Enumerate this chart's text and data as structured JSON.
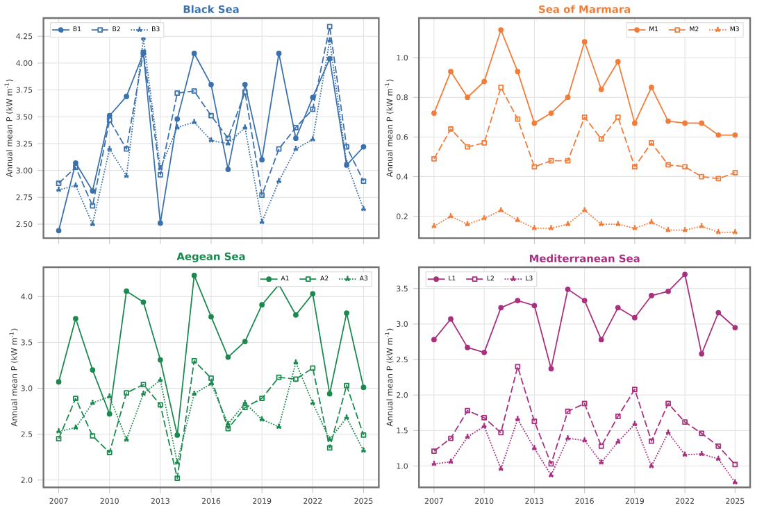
{
  "chart_data": [
    {
      "type": "line",
      "title": "Black Sea",
      "ylabel": "Annual mean P (kW m$^{-1}$)",
      "x": [
        2007,
        2008,
        2009,
        2010,
        2011,
        2012,
        2013,
        2014,
        2015,
        2016,
        2017,
        2018,
        2019,
        2020,
        2021,
        2022,
        2023,
        2024,
        2025
      ],
      "series": [
        {
          "name": "B1",
          "color": "#3b72ad",
          "marker": "circle",
          "line_style": "solid",
          "values": [
            2.44,
            3.07,
            2.81,
            3.51,
            3.69,
            4.09,
            2.51,
            3.48,
            4.09,
            3.8,
            3.01,
            3.8,
            3.1,
            4.09,
            3.3,
            3.68,
            4.04,
            3.05,
            3.22
          ]
        },
        {
          "name": "B2",
          "color": "#3b72ad",
          "marker": "square",
          "line_style": "dashed",
          "values": [
            2.88,
            3.03,
            2.67,
            3.47,
            3.2,
            4.1,
            2.96,
            3.72,
            3.74,
            3.51,
            3.3,
            3.73,
            2.77,
            3.2,
            3.4,
            3.57,
            4.34,
            3.22,
            2.9
          ]
        },
        {
          "name": "B3",
          "color": "#3b72ad",
          "marker": "triangle",
          "line_style": "dotted",
          "values": [
            2.82,
            2.86,
            2.5,
            3.2,
            2.95,
            4.23,
            3.02,
            3.4,
            3.45,
            3.28,
            3.25,
            3.4,
            2.52,
            2.9,
            3.2,
            3.29,
            4.21,
            3.07,
            2.64
          ]
        }
      ],
      "xlim": [
        2006.1,
        2025.9
      ],
      "ylim": [
        2.37,
        4.42
      ],
      "xticks": [
        2007,
        2010,
        2013,
        2016,
        2019,
        2022,
        2025
      ],
      "yticks": [
        {
          "value": 2.5,
          "label": "2.50"
        },
        {
          "value": 2.75,
          "label": "2.75"
        },
        {
          "value": 3.0,
          "label": "3.00"
        },
        {
          "value": 3.25,
          "label": "3.25"
        },
        {
          "value": 3.5,
          "label": "3.50"
        },
        {
          "value": 3.75,
          "label": "3.75"
        },
        {
          "value": 4.0,
          "label": "4.00"
        },
        {
          "value": 4.25,
          "label": "4.25"
        }
      ],
      "tick_labels": "y",
      "grid": true,
      "legend": "top left"
    },
    {
      "type": "line",
      "title": "Sea of Marmara",
      "ylabel": "Annual mean P (kW m$^{-1}$)",
      "x": [
        2007,
        2008,
        2009,
        2010,
        2011,
        2012,
        2013,
        2014,
        2015,
        2016,
        2017,
        2018,
        2019,
        2020,
        2021,
        2022,
        2023,
        2024,
        2025
      ],
      "series": [
        {
          "name": "M1",
          "color": "#f07d3a",
          "marker": "circle",
          "line_style": "solid",
          "values": [
            0.72,
            0.93,
            0.8,
            0.88,
            1.14,
            0.93,
            0.67,
            0.72,
            0.8,
            1.08,
            0.84,
            0.98,
            0.67,
            0.85,
            0.68,
            0.67,
            0.67,
            0.61,
            0.61
          ]
        },
        {
          "name": "M2",
          "color": "#f07d3a",
          "marker": "square",
          "line_style": "dashed",
          "values": [
            0.49,
            0.64,
            0.55,
            0.57,
            0.85,
            0.69,
            0.45,
            0.48,
            0.48,
            0.7,
            0.59,
            0.7,
            0.45,
            0.57,
            0.46,
            0.45,
            0.4,
            0.39,
            0.42
          ]
        },
        {
          "name": "M3",
          "color": "#f07d3a",
          "marker": "triangle",
          "line_style": "dotted",
          "values": [
            0.15,
            0.2,
            0.16,
            0.19,
            0.23,
            0.18,
            0.14,
            0.14,
            0.16,
            0.23,
            0.16,
            0.16,
            0.14,
            0.17,
            0.13,
            0.13,
            0.15,
            0.12,
            0.12
          ]
        }
      ],
      "xlim": [
        2006.1,
        2025.9
      ],
      "ylim": [
        0.09,
        1.2
      ],
      "xticks": [
        2007,
        2010,
        2013,
        2016,
        2019,
        2022,
        2025
      ],
      "yticks": [
        0.2,
        0.4,
        0.6,
        0.8,
        {
          "value": 1.0,
          "label": "1.0"
        }
      ],
      "tick_labels": "y",
      "grid": true,
      "legend": "top right"
    },
    {
      "type": "line",
      "title": "Aegean Sea",
      "ylabel": "Annual mean P (kW m$^{-1}$)",
      "x": [
        2007,
        2008,
        2009,
        2010,
        2011,
        2012,
        2013,
        2014,
        2015,
        2016,
        2017,
        2018,
        2019,
        2020,
        2021,
        2022,
        2023,
        2024,
        2025
      ],
      "series": [
        {
          "name": "A1",
          "color": "#1b8a4f",
          "marker": "circle",
          "line_style": "solid",
          "values": [
            3.07,
            3.76,
            3.2,
            2.72,
            4.06,
            3.94,
            3.31,
            2.49,
            4.23,
            3.78,
            3.34,
            3.51,
            3.91,
            4.13,
            3.8,
            4.03,
            2.94,
            3.82,
            3.01
          ]
        },
        {
          "name": "A2",
          "color": "#1b8a4f",
          "marker": "square",
          "line_style": "dashed",
          "values": [
            2.45,
            2.89,
            2.48,
            2.3,
            2.95,
            3.04,
            2.82,
            2.02,
            3.3,
            3.11,
            2.56,
            2.79,
            2.89,
            3.12,
            3.1,
            3.22,
            2.35,
            3.03,
            2.49
          ]
        },
        {
          "name": "A3",
          "color": "#1b8a4f",
          "marker": "triangle",
          "line_style": "dotted",
          "values": [
            2.53,
            2.57,
            2.84,
            2.91,
            2.44,
            2.94,
            3.09,
            2.19,
            2.94,
            3.05,
            2.61,
            2.84,
            2.66,
            2.58,
            3.28,
            2.84,
            2.44,
            2.68,
            2.32
          ]
        }
      ],
      "xlim": [
        2006.1,
        2025.9
      ],
      "ylim": [
        1.92,
        4.32
      ],
      "xticks": [
        2007,
        2010,
        2013,
        2016,
        2019,
        2022,
        2025
      ],
      "yticks": [
        {
          "value": 2.0,
          "label": "2.0"
        },
        2.5,
        {
          "value": 3.0,
          "label": "3.0"
        },
        3.5,
        {
          "value": 4.0,
          "label": "4.0"
        }
      ],
      "grid": true,
      "legend": "top right"
    },
    {
      "type": "line",
      "title": "Mediterranean Sea",
      "ylabel": "Annual mean P (kW m$^{-1}$)",
      "x": [
        2007,
        2008,
        2009,
        2010,
        2011,
        2012,
        2013,
        2014,
        2015,
        2016,
        2017,
        2018,
        2019,
        2020,
        2021,
        2022,
        2023,
        2024,
        2025
      ],
      "series": [
        {
          "name": "L1",
          "color": "#a8307f",
          "marker": "circle",
          "line_style": "solid",
          "values": [
            2.78,
            3.07,
            2.67,
            2.6,
            3.23,
            3.33,
            3.26,
            2.37,
            3.49,
            3.33,
            2.78,
            3.23,
            3.09,
            3.4,
            3.46,
            3.7,
            2.58,
            3.16,
            2.95
          ]
        },
        {
          "name": "L2",
          "color": "#a8307f",
          "marker": "square",
          "line_style": "dashed",
          "values": [
            1.21,
            1.39,
            1.78,
            1.68,
            1.47,
            2.4,
            1.63,
            1.03,
            1.77,
            1.88,
            1.28,
            1.7,
            2.08,
            1.35,
            1.88,
            1.62,
            1.46,
            1.28,
            1.02
          ]
        },
        {
          "name": "L3",
          "color": "#a8307f",
          "marker": "triangle",
          "line_style": "dotted",
          "values": [
            1.03,
            1.06,
            1.41,
            1.56,
            0.96,
            1.66,
            1.25,
            0.87,
            1.39,
            1.36,
            1.05,
            1.34,
            1.59,
            1.0,
            1.47,
            1.16,
            1.17,
            1.1,
            0.77
          ]
        }
      ],
      "xlim": [
        2006.1,
        2025.9
      ],
      "ylim": [
        0.7,
        3.8
      ],
      "xticks": [
        2007,
        2010,
        2013,
        2016,
        2019,
        2022,
        2025
      ],
      "yticks": [
        {
          "value": 1.0,
          "label": "1.0"
        },
        1.5,
        {
          "value": 2.0,
          "label": "2.0"
        },
        2.5,
        {
          "value": 3.0,
          "label": "3.0"
        },
        3.5
      ],
      "grid": true,
      "legend": "top left"
    }
  ]
}
